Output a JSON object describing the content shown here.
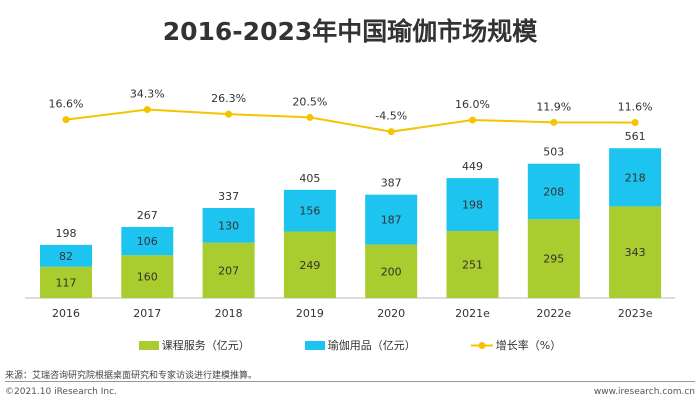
{
  "chart_data": {
    "type": "bar",
    "stacked": true,
    "title": "2016-2023年中国瑜伽市场规模",
    "categories": [
      "2016",
      "2017",
      "2018",
      "2019",
      "2020",
      "2021e",
      "2022e",
      "2023e"
    ],
    "series": [
      {
        "name": "课程服务（亿元）",
        "type": "bar",
        "color": "#a9cc2e",
        "values": [
          117,
          160,
          207,
          249,
          200,
          251,
          295,
          343
        ]
      },
      {
        "name": "瑜伽用品（亿元）",
        "type": "bar",
        "color": "#1ec4f0",
        "values": [
          82,
          106,
          130,
          156,
          187,
          198,
          208,
          218
        ]
      },
      {
        "name": "增长率（%）",
        "type": "line",
        "color": "#f5c400",
        "values": [
          16.6,
          34.3,
          26.3,
          20.5,
          -4.5,
          16.0,
          11.9,
          11.6
        ],
        "labels": [
          "16.6%",
          "34.3%",
          "26.3%",
          "20.5%",
          "-4.5%",
          "16.0%",
          "11.9%",
          "11.6%"
        ]
      }
    ],
    "totals": [
      198,
      267,
      337,
      405,
      387,
      449,
      503,
      561
    ],
    "grid": false,
    "legend": "bottom"
  },
  "footer": {
    "source": "来源：艾瑞咨询研究院根据桌面研究和专家访谈进行建模推算。",
    "copyright": "©2021.10 iResearch Inc.",
    "url": "www.iresearch.com.cn"
  }
}
